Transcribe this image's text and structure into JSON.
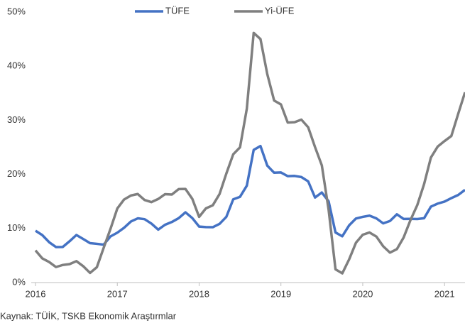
{
  "chart_data": {
    "type": "line",
    "source": "Kaynak: TÜİK, TSKB Ekonomik Araştırmlar",
    "x": [
      2016.0,
      2016.083,
      2016.167,
      2016.25,
      2016.333,
      2016.417,
      2016.5,
      2016.583,
      2016.667,
      2016.75,
      2016.833,
      2016.917,
      2017.0,
      2017.083,
      2017.167,
      2017.25,
      2017.333,
      2017.417,
      2017.5,
      2017.583,
      2017.667,
      2017.75,
      2017.833,
      2017.917,
      2018.0,
      2018.083,
      2018.167,
      2018.25,
      2018.333,
      2018.417,
      2018.5,
      2018.583,
      2018.667,
      2018.75,
      2018.833,
      2018.917,
      2019.0,
      2019.083,
      2019.167,
      2019.25,
      2019.333,
      2019.417,
      2019.5,
      2019.583,
      2019.667,
      2019.75,
      2019.833,
      2019.917,
      2020.0,
      2020.083,
      2020.167,
      2020.25,
      2020.333,
      2020.417,
      2020.5,
      2020.583,
      2020.667,
      2020.75,
      2020.833,
      2020.917,
      2021.0,
      2021.083,
      2021.167,
      2021.25
    ],
    "series": [
      {
        "name": "TÜFE",
        "color": "#4472c4",
        "values": [
          9.58,
          8.78,
          7.46,
          6.57,
          6.58,
          7.64,
          8.79,
          8.05,
          7.28,
          7.16,
          7.0,
          8.53,
          9.22,
          10.13,
          11.29,
          11.87,
          11.72,
          10.9,
          9.79,
          10.68,
          11.2,
          11.9,
          12.98,
          11.92,
          10.35,
          10.26,
          10.23,
          10.85,
          12.15,
          15.39,
          15.85,
          17.9,
          24.52,
          25.24,
          21.62,
          20.3,
          20.35,
          19.67,
          19.71,
          19.5,
          18.71,
          15.72,
          16.65,
          15.01,
          9.26,
          8.55,
          10.56,
          11.84,
          12.15,
          12.37,
          11.86,
          10.94,
          11.39,
          12.62,
          11.76,
          11.77,
          11.75,
          11.89,
          14.03,
          14.6,
          14.97,
          15.61,
          16.19,
          17.14
        ]
      },
      {
        "name": "Yi-ÜFE",
        "color": "#7f7f7f",
        "values": [
          5.94,
          4.47,
          3.8,
          2.87,
          3.25,
          3.41,
          3.96,
          3.03,
          1.78,
          2.84,
          6.41,
          9.94,
          13.69,
          15.36,
          16.09,
          16.37,
          15.26,
          14.87,
          15.45,
          16.34,
          16.28,
          17.28,
          17.3,
          15.47,
          12.14,
          13.71,
          14.28,
          16.37,
          20.16,
          23.71,
          25.0,
          32.13,
          46.15,
          45.01,
          38.54,
          33.64,
          32.93,
          29.58,
          29.64,
          30.12,
          28.71,
          25.04,
          21.66,
          13.45,
          2.45,
          1.7,
          4.26,
          7.36,
          8.84,
          9.26,
          8.5,
          6.71,
          5.53,
          6.17,
          8.33,
          11.53,
          14.33,
          18.2,
          23.11,
          25.15,
          26.16,
          27.09,
          31.2,
          35.17
        ]
      }
    ],
    "xlim": [
      2016,
      2021.25
    ],
    "xticks": [
      2016,
      2017,
      2018,
      2019,
      2020,
      2021
    ],
    "ylim": [
      0,
      50
    ],
    "yticks": [
      {
        "value": 0,
        "label": "0%"
      },
      {
        "value": 10,
        "label": "10%"
      },
      {
        "value": 20,
        "label": "20%"
      },
      {
        "value": 30,
        "label": "30%"
      },
      {
        "value": 40,
        "label": "40%"
      },
      {
        "value": 50,
        "label": "50%"
      }
    ],
    "grid": false,
    "legend": "top"
  }
}
